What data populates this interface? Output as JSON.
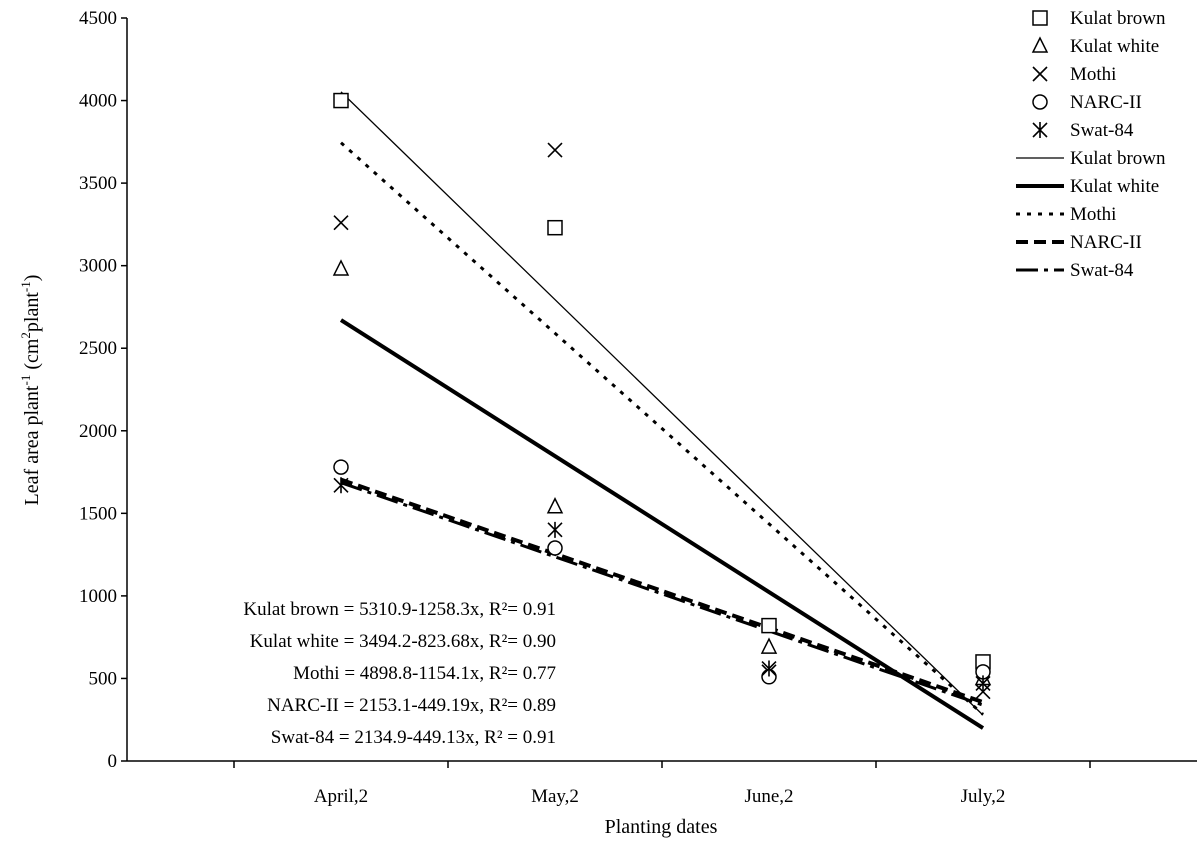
{
  "chart_data": {
    "type": "scatter",
    "xlabel": "Planting dates",
    "ylabel": "Leaf area plant",
    "ylabel_sup1": "-1",
    "ylabel_mid": " (cm",
    "ylabel_sup2": "2",
    "ylabel_mid2": "plant",
    "ylabel_sup3": "-1",
    "ylabel_end": ")",
    "categories": [
      "April,2",
      "May,2",
      "June,2",
      "July,2"
    ],
    "x": [
      1,
      2,
      3,
      4
    ],
    "xlim": [
      0,
      5
    ],
    "ylim": [
      0,
      4500
    ],
    "yticks": [
      0,
      500,
      1000,
      1500,
      2000,
      2500,
      3000,
      3500,
      4000,
      4500
    ],
    "grid": false,
    "legend_position": "top-right",
    "series": [
      {
        "name": "Kulat brown",
        "marker": "square",
        "values": [
          4000,
          3230,
          820,
          600
        ]
      },
      {
        "name": "Kulat white",
        "marker": "triangle",
        "values": [
          2980,
          1540,
          690,
          500
        ]
      },
      {
        "name": "Mothi",
        "marker": "x",
        "values": [
          3260,
          3700,
          540,
          420
        ]
      },
      {
        "name": "NARC-II",
        "marker": "circle",
        "values": [
          1780,
          1290,
          510,
          540
        ]
      },
      {
        "name": "Swat-84",
        "marker": "asterisk",
        "values": [
          1670,
          1400,
          560,
          470
        ]
      }
    ],
    "trendlines": [
      {
        "name": "Kulat brown",
        "intercept": 5310.9,
        "slope": -1258.3,
        "style": "thin",
        "equation": "Kulat brown = 5310.9-1258.3x, R²= 0.91"
      },
      {
        "name": "Kulat white",
        "intercept": 3494.2,
        "slope": -823.68,
        "style": "thick",
        "equation": "Kulat white = 3494.2-823.68x, R²= 0.90"
      },
      {
        "name": "Mothi",
        "intercept": 4898.8,
        "slope": -1154.1,
        "style": "dotted",
        "equation": "Mothi = 4898.8-1154.1x, R²= 0.77"
      },
      {
        "name": "NARC-II",
        "intercept": 2153.1,
        "slope": -449.19,
        "style": "dashed",
        "equation": "NARC-II = 2153.1-449.19x, R²= 0.89"
      },
      {
        "name": "Swat-84",
        "intercept": 2134.9,
        "slope": -449.13,
        "style": "dashdot",
        "equation": "Swat-84 = 2134.9-449.13x, R² = 0.91"
      }
    ]
  }
}
